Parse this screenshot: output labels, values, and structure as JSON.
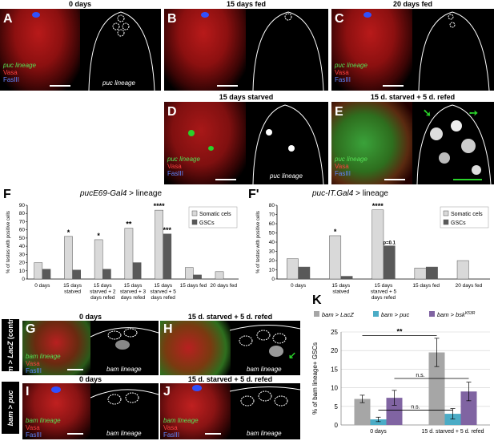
{
  "top_panels": [
    {
      "letter": "A",
      "title": "0 days",
      "legend": [
        "puc lineage",
        "Vasa",
        "FasIII"
      ],
      "lineage": "puc lineage"
    },
    {
      "letter": "B",
      "title": "15 days fed"
    },
    {
      "letter": "C",
      "title": "20 days fed",
      "legend": [
        "puc lineage",
        "Vasa",
        "FasIII"
      ]
    },
    {
      "letter": "D",
      "title": "15 days starved",
      "legend": [
        "puc lineage",
        "Vasa",
        "FasIII"
      ],
      "lineage": "puc lineage"
    },
    {
      "letter": "E",
      "title": "15 d. starved + 5 d. refed",
      "legend": [
        "puc lineage",
        "Vasa",
        "FasIII"
      ]
    }
  ],
  "panel_F": {
    "letter": "F",
    "title_italic": "pucE69-Gal4",
    "title_rest": " > lineage"
  },
  "panel_F2": {
    "letter": "F'",
    "title_italic": "puc-IT.Gal4",
    "title_rest": " > lineage"
  },
  "bottom_panels": [
    {
      "letter": "G",
      "title": "0 days",
      "legend": [
        "bam lineage",
        "Vasa",
        "FasIII"
      ],
      "lineage": "bam lineage"
    },
    {
      "letter": "H",
      "title": "15 d. starved + 5 d. refed",
      "lineage": "bam lineage"
    },
    {
      "letter": "I",
      "title": "0 days",
      "legend": [
        "bam lineage",
        "Vasa",
        "FasIII"
      ],
      "lineage": "bam lineage"
    },
    {
      "letter": "J",
      "title": "15 d. starved + 5 d. refed",
      "legend": [
        "bam lineage",
        "Vasa",
        "FasIII"
      ],
      "lineage": "bam lineage"
    }
  ],
  "row_labels": {
    "lacz_line1": "bam > LacZ",
    "lacz_line2": "(control)",
    "puc": "bam > puc"
  },
  "panel_K": {
    "letter": "K"
  },
  "chart_data": [
    {
      "type": "bar",
      "id": "F",
      "title": "pucE69-Gal4 > lineage",
      "ylabel": "% of testes with positive cells",
      "ylim": [
        0,
        90
      ],
      "yticks": [
        0,
        10,
        20,
        30,
        40,
        50,
        60,
        70,
        80,
        90
      ],
      "categories": [
        "0 days",
        "15 days statved",
        "15 days starved + 2 days  refed",
        "15 days starved + 3 days  refed",
        "15 days starved + 5 days refed",
        "15 days fed",
        "20 days fed"
      ],
      "series": [
        {
          "name": "Somatic cels",
          "color": "#d9d9d9",
          "values": [
            20,
            52,
            48,
            62,
            84,
            14,
            9
          ]
        },
        {
          "name": "GSCs",
          "color": "#595959",
          "values": [
            12,
            11,
            12,
            20,
            55,
            5,
            null
          ]
        }
      ],
      "annotations": [
        {
          "category": 1,
          "series": 0,
          "text": "*"
        },
        {
          "category": 2,
          "series": 0,
          "text": "*"
        },
        {
          "category": 3,
          "series": 0,
          "text": "**"
        },
        {
          "category": 4,
          "series": 0,
          "text": "****"
        },
        {
          "category": 4,
          "series": 1,
          "text": "***"
        }
      ],
      "legend": "top-right"
    },
    {
      "type": "bar",
      "id": "F'",
      "title": "puc-IT.Gal4 > lineage",
      "ylabel": "% of testes with positive cells",
      "ylim": [
        0,
        80
      ],
      "yticks": [
        0,
        10,
        20,
        30,
        40,
        50,
        60,
        70,
        80
      ],
      "categories": [
        "0 days",
        "15 days statved",
        "15 days starved + 5 days refed",
        "15 days fed",
        "20 days fed"
      ],
      "series": [
        {
          "name": "Somatic cels",
          "color": "#d9d9d9",
          "values": [
            22,
            47,
            75,
            12,
            20
          ]
        },
        {
          "name": "GSCs",
          "color": "#595959",
          "values": [
            13,
            3,
            36,
            13,
            null
          ]
        }
      ],
      "annotations": [
        {
          "category": 1,
          "series": 0,
          "text": "*"
        },
        {
          "category": 2,
          "series": 0,
          "text": "****"
        },
        {
          "category": 2,
          "series": 1,
          "text": "p=0.1"
        }
      ],
      "legend": "top-right"
    },
    {
      "type": "bar",
      "id": "K",
      "ylabel": "% of bam lineage+ GSCs",
      "ylim": [
        0,
        25
      ],
      "yticks": [
        0,
        5,
        10,
        15,
        20,
        25
      ],
      "categories": [
        "0 days",
        "15 d. starved + 5 d. refed"
      ],
      "series": [
        {
          "name": "bam > LacZ",
          "color": "#a6a6a6",
          "values": [
            7,
            19.5
          ],
          "errors": [
            1,
            3.8
          ]
        },
        {
          "name": "bam > puc",
          "color": "#4bacc6",
          "values": [
            1.5,
            3
          ],
          "errors": [
            0.6,
            1.4
          ]
        },
        {
          "name": "bam > bsk^K53R",
          "color": "#8064a2",
          "values": [
            7.3,
            9
          ],
          "errors": [
            2,
            2.5
          ]
        }
      ],
      "significance": [
        "**",
        "n.s.",
        "n.s."
      ],
      "legend": "top"
    }
  ]
}
